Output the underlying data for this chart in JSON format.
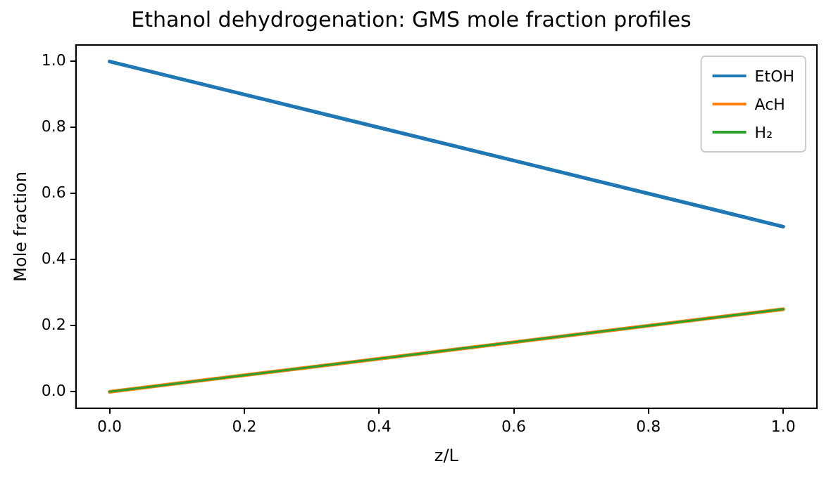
{
  "chart_data": {
    "type": "line",
    "title": "Ethanol dehydrogenation: GMS mole fraction profiles",
    "xlabel": "z/L",
    "ylabel": "Mole fraction",
    "x": [
      0,
      1
    ],
    "series": [
      {
        "name": "EtOH",
        "color": "#1f77b4",
        "values": [
          1.0,
          0.5
        ]
      },
      {
        "name": "AcH",
        "color": "#ff7f0e",
        "values": [
          0.0,
          0.25
        ]
      },
      {
        "name": "H₂",
        "color": "#2ca02c",
        "values": [
          0.0,
          0.25
        ]
      }
    ],
    "xlim": [
      -0.05,
      1.05
    ],
    "xticks": [
      {
        "value": 0,
        "label": "0.0"
      },
      {
        "value": 0.2,
        "label": "0.2"
      },
      {
        "value": 0.4,
        "label": "0.4"
      },
      {
        "value": 0.6,
        "label": "0.6"
      },
      {
        "value": 0.8,
        "label": "0.8"
      },
      {
        "value": 1,
        "label": "1.0"
      }
    ],
    "ylim": [
      -0.05,
      1.05
    ],
    "yticks": [
      {
        "value": 0,
        "label": "0.0"
      },
      {
        "value": 0.2,
        "label": "0.2"
      },
      {
        "value": 0.4,
        "label": "0.4"
      },
      {
        "value": 0.6,
        "label": "0.6"
      },
      {
        "value": 0.8,
        "label": "0.8"
      },
      {
        "value": 1,
        "label": "1.0"
      }
    ],
    "grid": false,
    "legend": "top right",
    "marker": "none",
    "line_style": "solid"
  }
}
